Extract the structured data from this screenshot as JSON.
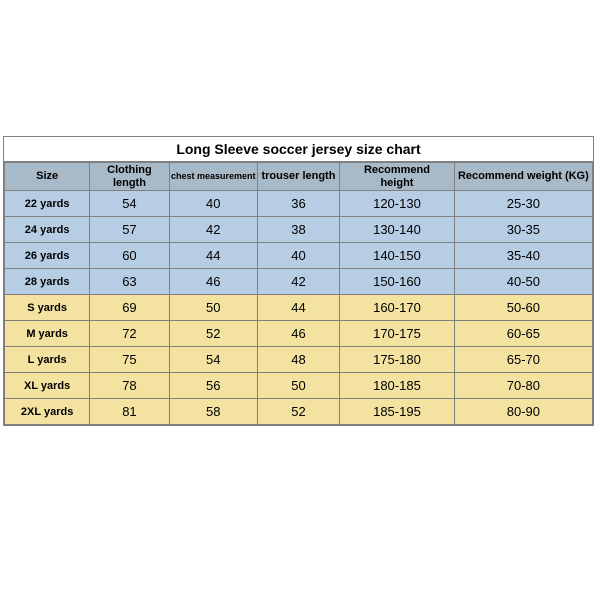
{
  "title": "Long Sleeve soccer jersey size chart",
  "colors": {
    "header_bg": "#a8b9c8",
    "kids_bg": "#b7cde3",
    "adult_bg": "#f3e2a0",
    "border": "#808080",
    "text": "#000000"
  },
  "col_widths_pct": [
    14.5,
    13.5,
    15,
    14,
    19.5,
    23.5
  ],
  "columns": [
    {
      "label": "Size"
    },
    {
      "label": "Clothing length",
      "two_line": true
    },
    {
      "label": "chest measurement",
      "small": true
    },
    {
      "label": "trouser length"
    },
    {
      "label": "Recommend height",
      "two_line": true
    },
    {
      "label": "Recommend weight (KG)"
    }
  ],
  "rows": [
    {
      "group": "kids",
      "cells": [
        "22 yards",
        "54",
        "40",
        "36",
        "120-130",
        "25-30"
      ]
    },
    {
      "group": "kids",
      "cells": [
        "24 yards",
        "57",
        "42",
        "38",
        "130-140",
        "30-35"
      ]
    },
    {
      "group": "kids",
      "cells": [
        "26 yards",
        "60",
        "44",
        "40",
        "140-150",
        "35-40"
      ]
    },
    {
      "group": "kids",
      "cells": [
        "28 yards",
        "63",
        "46",
        "42",
        "150-160",
        "40-50"
      ]
    },
    {
      "group": "adult",
      "cells": [
        "S yards",
        "69",
        "50",
        "44",
        "160-170",
        "50-60"
      ]
    },
    {
      "group": "adult",
      "cells": [
        "M yards",
        "72",
        "52",
        "46",
        "170-175",
        "60-65"
      ]
    },
    {
      "group": "adult",
      "cells": [
        "L yards",
        "75",
        "54",
        "48",
        "175-180",
        "65-70"
      ]
    },
    {
      "group": "adult",
      "cells": [
        "XL yards",
        "78",
        "56",
        "50",
        "180-185",
        "70-80"
      ]
    },
    {
      "group": "adult",
      "cells": [
        "2XL yards",
        "81",
        "58",
        "52",
        "185-195",
        "80-90"
      ]
    }
  ]
}
